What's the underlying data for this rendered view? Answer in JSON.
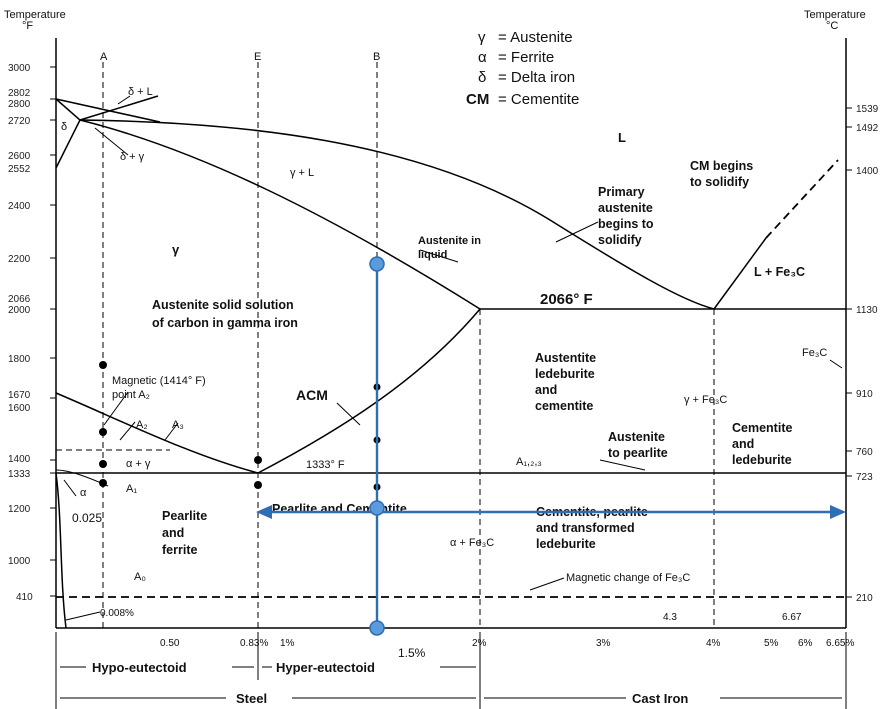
{
  "axes": {
    "left_title_line1": "Temperature",
    "left_title_line2": "°F",
    "right_title_line1": "Temperature",
    "right_title_line2": "°C",
    "left_ticks": [
      "3000",
      "2802",
      "2800",
      "2720",
      "2600",
      "2552",
      "2400",
      "2200",
      "2066",
      "2000",
      "1800",
      "1670",
      "1600",
      "1400",
      "1333",
      "1200",
      "1000",
      "410"
    ],
    "right_ticks": [
      "1539",
      "1492",
      "1400",
      "1130",
      "910",
      "760",
      "723",
      "210"
    ],
    "bottom_ticks": [
      "0.50",
      "0.83%",
      "1%",
      "2%",
      "3%",
      "4%",
      "5%",
      "6%",
      "6.65%"
    ],
    "bottom_extra": [
      "0.008%",
      "4.3",
      "6.67",
      "0.025"
    ]
  },
  "column_labels": [
    "A",
    "E",
    "B"
  ],
  "legend": [
    {
      "symbol": "γ",
      "text": "= Austenite"
    },
    {
      "symbol": "α",
      "text": "= Ferrite"
    },
    {
      "symbol": "δ",
      "text": "= Delta iron"
    },
    {
      "symbol": "CM",
      "text": "= Cementite"
    }
  ],
  "phase_labels": {
    "delta_l": "δ + L",
    "delta_gamma": "δ + γ",
    "delta": "δ",
    "gamma_l": "γ + L",
    "l": "L",
    "gamma": "γ",
    "cm_begins": [
      "CM begins",
      "to solidify"
    ],
    "primary_austenite": [
      "Primary",
      "austenite",
      "begins to",
      "solidify"
    ],
    "austenite_in_liquid": [
      "Austenite in",
      "liquid"
    ],
    "l_fe3c": "L + Fe₃C",
    "eutectic_temp": "2066° F",
    "austenite_solid": [
      "Austenite solid solution",
      "of carbon in gamma iron"
    ],
    "magnetic": [
      "Magnetic (1414° F)",
      "point A₂"
    ],
    "a2": "A₂",
    "a3": "A₃",
    "alpha_gamma": "α + γ",
    "a1": "A₁",
    "alpha": "α",
    "acm": "ACM",
    "eutectoid_temp": "1333° F",
    "austentite_ledeburite": [
      "Austentite",
      "ledeburite",
      "and",
      "cementite"
    ],
    "gamma_fe3c": "γ + Fe₃C",
    "fe3c": "Fe₃C",
    "austenite_pearlite": [
      "Austenite",
      "to pearlite"
    ],
    "a123": "A₁,₂,₃",
    "cementite_ledeburite": [
      "Cementite",
      "and",
      "ledeburite"
    ],
    "pearlite_ferrite": [
      "Pearlite",
      "and",
      "ferrite"
    ],
    "pearlite_cementite": "Pearlite and Cementite",
    "cementite_pearlite": [
      "Cementite, pearlite",
      "and transformed",
      "ledeburite"
    ],
    "alpha_fe3c": "α + Fe₃C",
    "a0": "A₀",
    "magnetic_change": "Magnetic change of Fe₃C"
  },
  "annotation": {
    "composition": "1.5%"
  },
  "bottom_bands": {
    "hypo": "Hypo-eutectoid",
    "hyper": "Hyper-eutectoid",
    "steel": "Steel",
    "cast_iron": "Cast Iron"
  }
}
